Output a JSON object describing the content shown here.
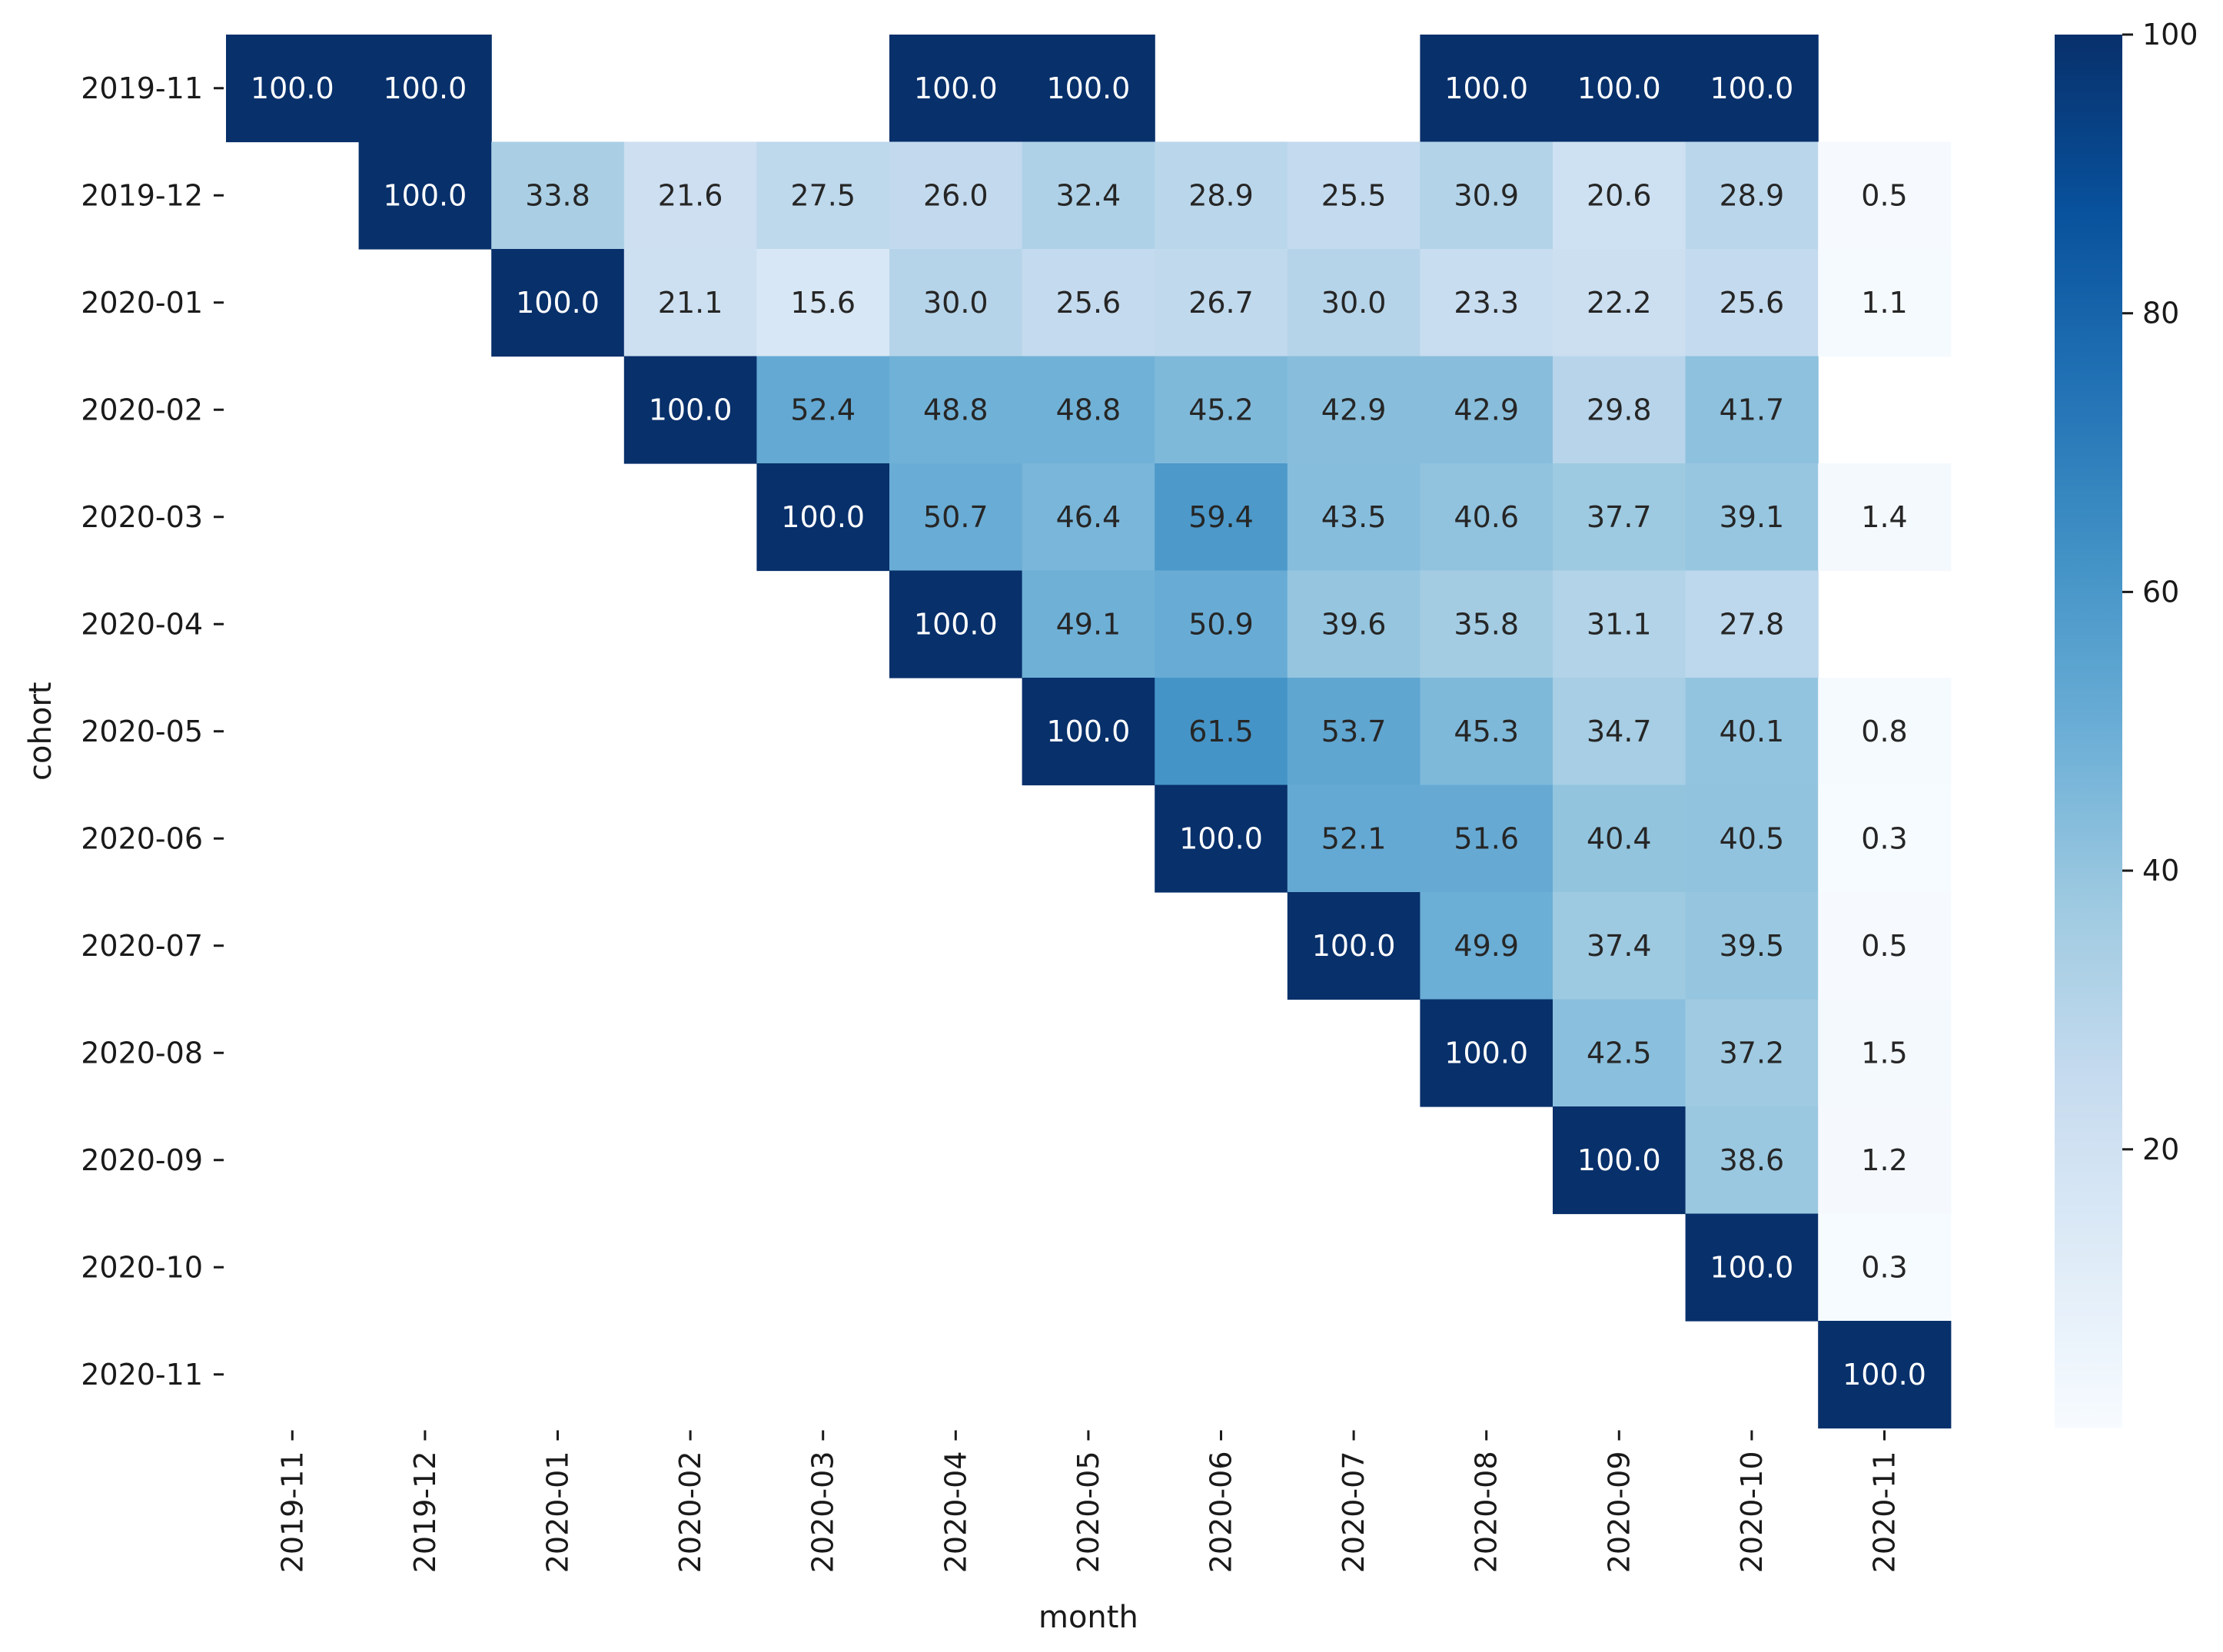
{
  "chart_data": {
    "type": "heatmap",
    "title": "",
    "xlabel": "month",
    "ylabel": "cohort",
    "x_categories": [
      "2019-11",
      "2019-12",
      "2020-01",
      "2020-02",
      "2020-03",
      "2020-04",
      "2020-05",
      "2020-06",
      "2020-07",
      "2020-08",
      "2020-09",
      "2020-10",
      "2020-11"
    ],
    "y_categories": [
      "2019-11",
      "2019-12",
      "2020-01",
      "2020-02",
      "2020-03",
      "2020-04",
      "2020-05",
      "2020-06",
      "2020-07",
      "2020-08",
      "2020-09",
      "2020-10",
      "2020-11"
    ],
    "values": [
      [
        100.0,
        100.0,
        null,
        null,
        null,
        100.0,
        100.0,
        null,
        null,
        100.0,
        100.0,
        100.0,
        null
      ],
      [
        null,
        100.0,
        33.8,
        21.6,
        27.5,
        26.0,
        32.4,
        28.9,
        25.5,
        30.9,
        20.6,
        28.9,
        0.5
      ],
      [
        null,
        null,
        100.0,
        21.1,
        15.6,
        30.0,
        25.6,
        26.7,
        30.0,
        23.3,
        22.2,
        25.6,
        1.1
      ],
      [
        null,
        null,
        null,
        100.0,
        52.4,
        48.8,
        48.8,
        45.2,
        42.9,
        42.9,
        29.8,
        41.7,
        null
      ],
      [
        null,
        null,
        null,
        null,
        100.0,
        50.7,
        46.4,
        59.4,
        43.5,
        40.6,
        37.7,
        39.1,
        1.4
      ],
      [
        null,
        null,
        null,
        null,
        null,
        100.0,
        49.1,
        50.9,
        39.6,
        35.8,
        31.1,
        27.8,
        null
      ],
      [
        null,
        null,
        null,
        null,
        null,
        null,
        100.0,
        61.5,
        53.7,
        45.3,
        34.7,
        40.1,
        0.8
      ],
      [
        null,
        null,
        null,
        null,
        null,
        null,
        null,
        100.0,
        52.1,
        51.6,
        40.4,
        40.5,
        0.3
      ],
      [
        null,
        null,
        null,
        null,
        null,
        null,
        null,
        null,
        100.0,
        49.9,
        37.4,
        39.5,
        0.5
      ],
      [
        null,
        null,
        null,
        null,
        null,
        null,
        null,
        null,
        null,
        100.0,
        42.5,
        37.2,
        1.5
      ],
      [
        null,
        null,
        null,
        null,
        null,
        null,
        null,
        null,
        null,
        null,
        100.0,
        38.6,
        1.2
      ],
      [
        null,
        null,
        null,
        null,
        null,
        null,
        null,
        null,
        null,
        null,
        null,
        100.0,
        0.3
      ],
      [
        null,
        null,
        null,
        null,
        null,
        null,
        null,
        null,
        null,
        null,
        null,
        null,
        100.0
      ]
    ],
    "value_format": "0.1f",
    "colormap": "Blues",
    "color_range": [
      0,
      100
    ],
    "colorbar": {
      "ticks": [
        20,
        40,
        60,
        80,
        100
      ]
    },
    "grid": false,
    "legend": "colorbar-right"
  }
}
